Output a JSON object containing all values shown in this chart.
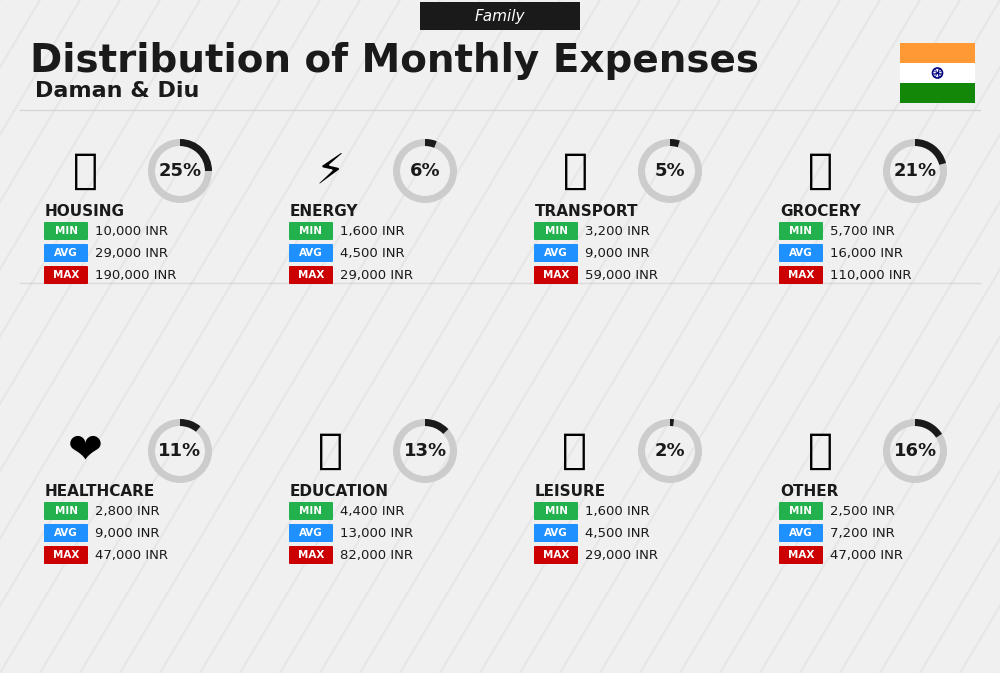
{
  "title": "Distribution of Monthly Expenses",
  "subtitle": "Daman & Diu",
  "family_label": "Family",
  "bg_color": "#f0f0f0",
  "categories": [
    {
      "name": "HOUSING",
      "pct": 25,
      "icon_emoji": "🏢",
      "min": "10,000 INR",
      "avg": "29,000 INR",
      "max": "190,000 INR",
      "row": 0,
      "col": 0
    },
    {
      "name": "ENERGY",
      "pct": 6,
      "icon_emoji": "⚡",
      "min": "1,600 INR",
      "avg": "4,500 INR",
      "max": "29,000 INR",
      "row": 0,
      "col": 1
    },
    {
      "name": "TRANSPORT",
      "pct": 5,
      "icon_emoji": "🚌",
      "min": "3,200 INR",
      "avg": "9,000 INR",
      "max": "59,000 INR",
      "row": 0,
      "col": 2
    },
    {
      "name": "GROCERY",
      "pct": 21,
      "icon_emoji": "🛒",
      "min": "5,700 INR",
      "avg": "16,000 INR",
      "max": "110,000 INR",
      "row": 0,
      "col": 3
    },
    {
      "name": "HEALTHCARE",
      "pct": 11,
      "icon_emoji": "❤️",
      "min": "2,800 INR",
      "avg": "9,000 INR",
      "max": "47,000 INR",
      "row": 1,
      "col": 0
    },
    {
      "name": "EDUCATION",
      "pct": 13,
      "icon_emoji": "🎓",
      "min": "4,400 INR",
      "avg": "13,000 INR",
      "max": "82,000 INR",
      "row": 1,
      "col": 1
    },
    {
      "name": "LEISURE",
      "pct": 2,
      "icon_emoji": "🛍️",
      "min": "1,600 INR",
      "avg": "4,500 INR",
      "max": "29,000 INR",
      "row": 1,
      "col": 2
    },
    {
      "name": "OTHER",
      "pct": 16,
      "icon_emoji": "💼",
      "min": "2,500 INR",
      "avg": "7,200 INR",
      "max": "47,000 INR",
      "row": 1,
      "col": 3
    }
  ],
  "min_color": "#22b14c",
  "avg_color": "#1e90ff",
  "max_color": "#cc0000",
  "label_text_color": "#ffffff",
  "donut_filled_color": "#1a1a1a",
  "donut_empty_color": "#cccccc",
  "india_orange": "#FF9933",
  "india_green": "#138808"
}
